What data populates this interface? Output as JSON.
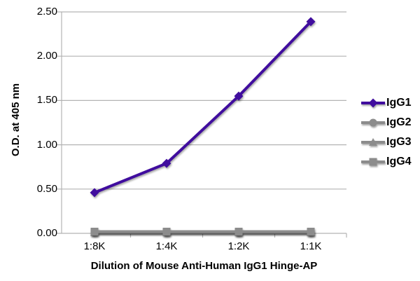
{
  "chart_data": {
    "type": "line",
    "title": "",
    "xlabel": "Dilution of Mouse Anti-Human IgG1 Hinge-AP",
    "ylabel": "O.D. at 405 nm",
    "categories": [
      "1:8K",
      "1:4K",
      "1:2K",
      "1:1K"
    ],
    "yticks": [
      "0.00",
      "0.50",
      "1.00",
      "1.50",
      "2.00",
      "2.50"
    ],
    "ylim": [
      0,
      2.5
    ],
    "grid": true,
    "legend_position": "right",
    "series": [
      {
        "name": "IgG1",
        "color": "#400D9E",
        "marker": "diamond",
        "values": [
          0.46,
          0.79,
          1.55,
          2.39
        ]
      },
      {
        "name": "IgG2",
        "color": "#8C8C8C",
        "marker": "circle",
        "values": [
          0.01,
          0.01,
          0.01,
          0.01
        ]
      },
      {
        "name": "IgG3",
        "color": "#8C8C8C",
        "marker": "triangle",
        "values": [
          0.01,
          0.01,
          0.01,
          0.01
        ]
      },
      {
        "name": "IgG4",
        "color": "#8C8C8C",
        "marker": "square",
        "values": [
          0.02,
          0.02,
          0.02,
          0.02
        ]
      }
    ],
    "colors": {
      "gridline": "#B3B3B3",
      "axis": "#B3B3B3",
      "text": "#000000",
      "background": "#FFFFFF"
    }
  }
}
